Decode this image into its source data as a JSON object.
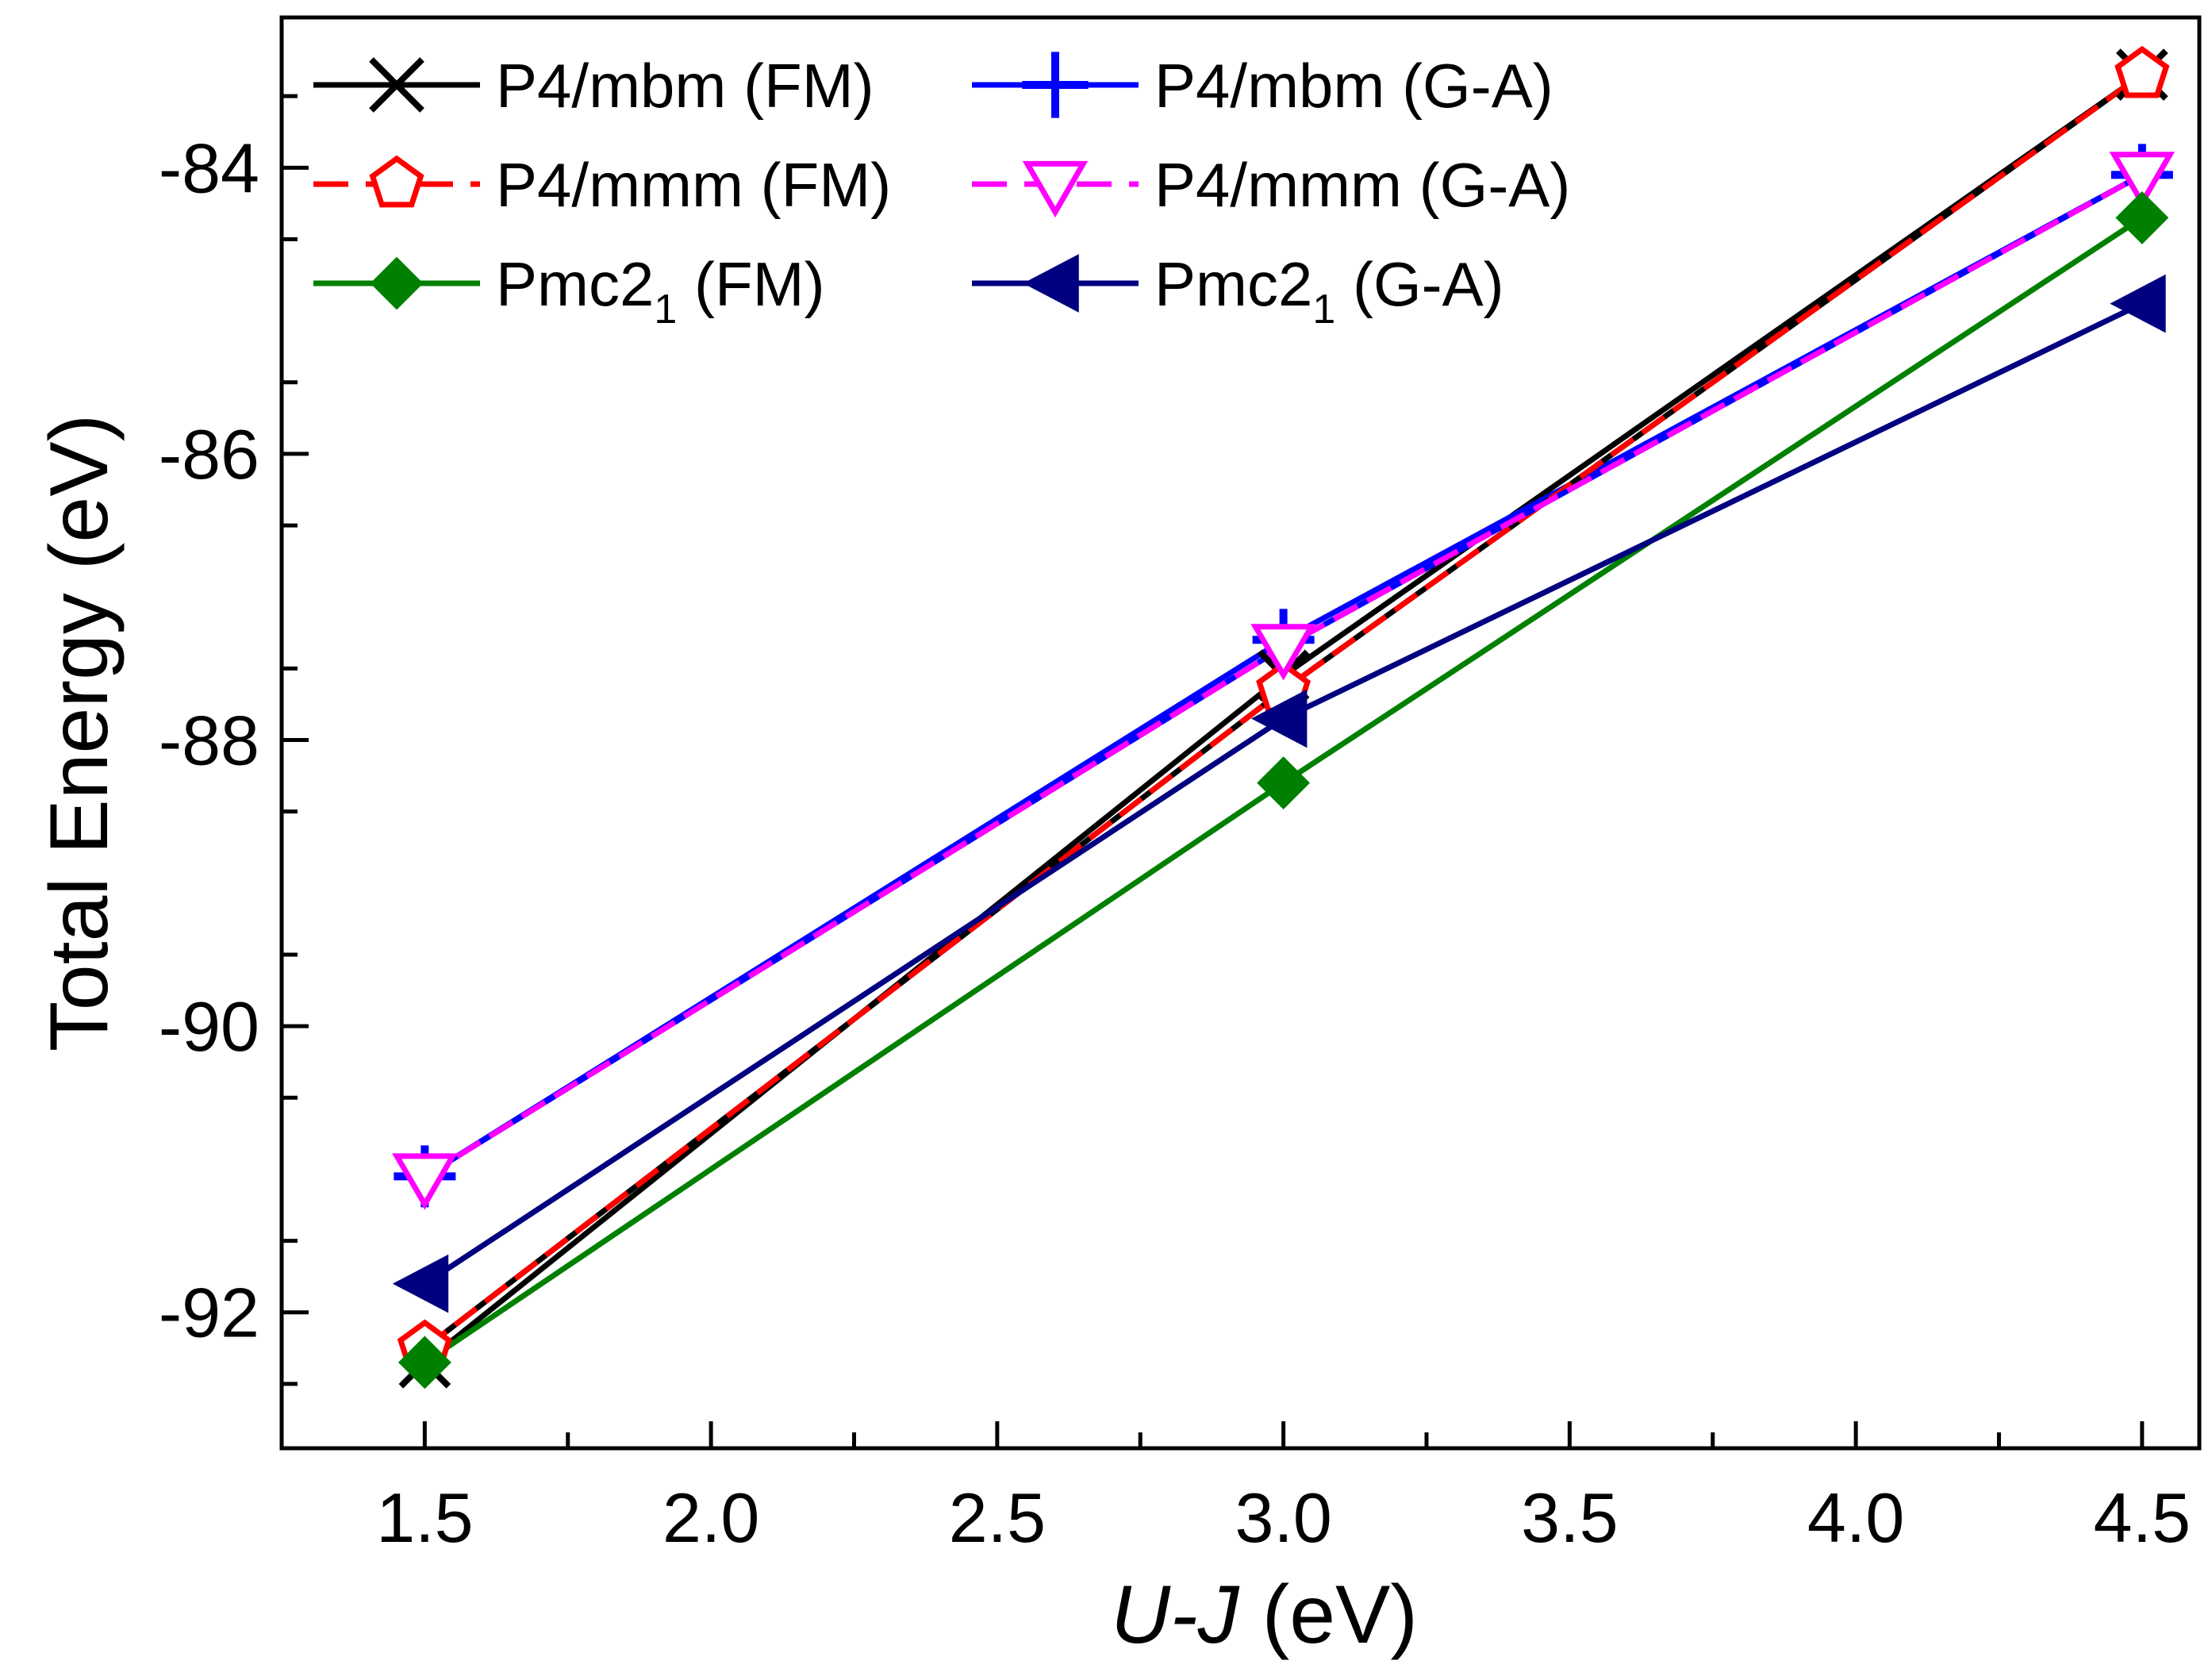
{
  "chart_data": {
    "type": "line",
    "title": "",
    "xlabel": {
      "italic": "U-J",
      "rest": " (eV)"
    },
    "ylabel": "Total Energy (eV)",
    "xlim": [
      1.25,
      4.6
    ],
    "ylim": [
      -92.95,
      -82.95
    ],
    "x_ticks": [
      1.5,
      2.0,
      2.5,
      3.0,
      3.5,
      4.0,
      4.5
    ],
    "x_tick_labels": [
      "1.5",
      "2.0",
      "2.5",
      "3.0",
      "3.5",
      "4.0",
      "4.5"
    ],
    "y_ticks": [
      -92,
      -90,
      -88,
      -86,
      -84
    ],
    "y_tick_labels": [
      "-92",
      "-90",
      "-88",
      "-86",
      "-84"
    ],
    "x": [
      1.5,
      3.0,
      4.5
    ],
    "series": [
      {
        "name": "P4/mbm (FM)",
        "label_main": "P4/mbm (FM)",
        "label_sub": "",
        "label_tail": "",
        "values": [
          -92.35,
          -87.55,
          -83.35
        ],
        "color": "#000000",
        "marker": "x",
        "dashed": false
      },
      {
        "name": "P4/mbm (G-A)",
        "label_main": "P4/mbm (G-A)",
        "label_sub": "",
        "label_tail": "",
        "values": [
          -91.05,
          -87.3,
          -84.05
        ],
        "color": "#0000ff",
        "marker": "plus",
        "dashed": false
      },
      {
        "name": "P4/mmm (FM)",
        "label_main": "P4/mmm (FM)",
        "label_sub": "",
        "label_tail": "",
        "values": [
          -92.25,
          -87.65,
          -83.35
        ],
        "color": "#ff0000",
        "marker": "pentagon",
        "dashed": true
      },
      {
        "name": "P4/mmm (G-A)",
        "label_main": " P4/mmm (G-A)",
        "label_sub": "",
        "label_tail": "",
        "values": [
          -91.05,
          -87.35,
          -84.05
        ],
        "color": "#ff00ff",
        "marker": "triangle-down",
        "dashed": true
      },
      {
        "name": "Pmc21 (FM)",
        "label_main": "Pmc2",
        "label_sub": "1",
        "label_tail": " (FM)",
        "values": [
          -92.35,
          -88.3,
          -84.35
        ],
        "color": "#008000",
        "marker": "diamond",
        "dashed": false
      },
      {
        "name": "Pmc21 (G-A)",
        "label_main": "Pmc2",
        "label_sub": "1",
        "label_tail": " (G-A)",
        "values": [
          -91.8,
          -87.85,
          -84.95
        ],
        "color": "#000080",
        "marker": "triangle-left",
        "dashed": false
      }
    ],
    "legend_position": "top-left",
    "grid": false
  }
}
